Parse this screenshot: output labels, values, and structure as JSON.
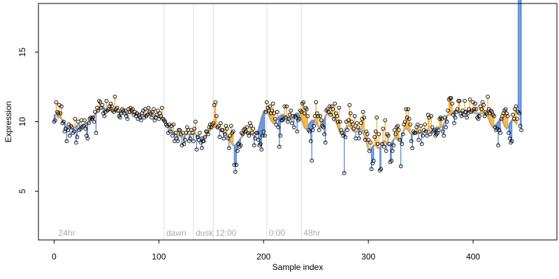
{
  "chart_data": {
    "type": "line",
    "xlabel": "Sample index",
    "ylabel": "Expression",
    "xlim": [
      -15,
      480
    ],
    "ylim": [
      1.5,
      18.5
    ],
    "xticks": [
      0,
      100,
      200,
      300,
      400
    ],
    "yticks": [
      5,
      10,
      15
    ],
    "colors": {
      "baseline": "#aaaaaa",
      "above": "#f5a623",
      "below": "#4a7fd6"
    },
    "markers": [
      {
        "x": 2,
        "label": "24hr",
        "line": false
      },
      {
        "x": 105,
        "label": "dawn",
        "line": true
      },
      {
        "x": 133,
        "label": "dusk",
        "line": true
      },
      {
        "x": 152,
        "label": "12:00",
        "line": true
      },
      {
        "x": 203,
        "label": "0:00",
        "line": true
      },
      {
        "x": 236,
        "label": "48hr",
        "line": true
      }
    ],
    "series": [
      {
        "values": [
          10.0,
          10.1,
          11.4,
          10.7,
          10.6,
          11.2,
          10.6,
          11.1,
          9.9,
          10.0,
          9.3,
          9.5,
          8.6,
          9.4,
          9.8,
          9.0,
          9.7,
          9.6,
          9.2,
          9.3,
          10.2,
          8.5,
          8.9,
          10.0,
          9.4,
          9.5,
          10.1,
          9.6,
          9.7,
          10.1,
          9.5,
          9.0,
          8.8,
          9.9,
          10.2,
          10.3,
          10.2,
          10.3,
          10.0,
          10.7,
          9.2,
          11.0,
          10.8,
          11.5,
          11.4,
          11.0,
          11.2,
          10.6,
          10.4,
          10.7,
          11.5,
          10.8,
          10.9,
          11.1,
          11.3,
          11.1,
          10.8,
          10.7,
          11.8,
          10.9,
          11.0,
          10.8,
          10.4,
          10.3,
          10.6,
          10.9,
          10.8,
          10.6,
          10.8,
          10.4,
          10.2,
          10.9,
          10.7,
          11.0,
          10.8,
          10.9,
          10.5,
          10.7,
          10.4,
          10.6,
          10.2,
          10.5,
          10.3,
          10.1,
          10.6,
          10.8,
          10.3,
          10.9,
          10.4,
          10.5,
          11.0,
          10.7,
          10.6,
          10.3,
          10.7,
          10.9,
          10.1,
          10.3,
          10.5,
          10.8,
          10.2,
          10.6,
          10.4,
          11.0,
          10.2,
          10.1,
          10.0,
          9.8,
          9.7,
          9.2,
          9.8,
          9.3,
          9.7,
          9.0,
          9.8,
          8.6,
          9.2,
          8.8,
          8.6,
          9.4,
          9.4,
          9.1,
          8.3,
          9.2,
          8.4,
          8.7,
          9.2,
          9.6,
          9.4,
          8.6,
          8.8,
          9.4,
          9.2,
          8.6,
          9.5,
          10.0,
          8.0,
          8.9,
          8.7,
          9.2,
          8.5,
          8.1,
          8.6,
          8.6,
          8.9,
          9.3,
          9.3,
          9.1,
          9.6,
          9.8,
          9.6,
          9.8,
          9.9,
          11.2,
          11.4,
          10.4,
          9.6,
          9.7,
          8.9,
          9.9,
          9.4,
          9.4,
          8.8,
          9.1,
          9.7,
          9.5,
          8.8,
          8.1,
          9.0,
          9.7,
          9.2,
          9.3,
          6.9,
          6.4,
          6.9,
          7.9,
          8.4,
          8.2,
          8.3,
          9.2,
          9.1,
          9.4,
          9.5,
          9.3,
          9.6,
          9.2,
          9.0,
          9.9,
          9.7,
          9.2,
          9.5,
          8.3,
          8.8,
          9.2,
          9.2,
          8.7,
          8.3,
          8.4,
          8.0,
          9.0,
          9.3,
          9.0,
          10.7,
          11.4,
          11.0,
          10.8,
          11.1,
          10.6,
          10.8,
          11.3,
          10.6,
          10.2,
          9.8,
          10.7,
          9.6,
          8.2,
          9.0,
          10.1,
          10.1,
          10.2,
          11.1,
          10.3,
          11.1,
          10.0,
          10.2,
          10.5,
          10.8,
          9.9,
          10.4,
          9.6,
          10.4,
          10.3,
          9.3,
          10.1,
          10.2,
          10.8,
          10.7,
          11.3,
          11.4,
          10.6,
          11.0,
          10.9,
          10.4,
          9.4,
          9.3,
          8.6,
          7.2,
          9.4,
          9.7,
          10.4,
          11.4,
          10.6,
          10.4,
          9.4,
          10.4,
          10.1,
          9.7,
          9.6,
          9.1,
          8.5,
          10.8,
          10.9,
          10.7,
          11.1,
          10.5,
          11.1,
          10.9,
          10.2,
          11.3,
          10.6,
          10.4,
          10.0,
          11.0,
          10.0,
          9.4,
          9.2,
          9.0,
          6.3,
          8.9,
          10.0,
          9.4,
          10.1,
          11.2,
          10.6,
          10.0,
          9.8,
          9.5,
          10.4,
          8.8,
          9.9,
          9.6,
          8.8,
          9.2,
          9.9,
          10.2,
          10.7,
          10.3,
          8.7,
          9.3,
          9.1,
          8.7,
          7.9,
          8.5,
          6.6,
          7.0,
          7.2,
          8.9,
          9.3,
          10.3,
          8.4,
          9.1,
          6.5,
          6.6,
          8.4,
          9.5,
          8.2,
          10.1,
          7.9,
          9.1,
          9.0,
          8.4,
          7.1,
          7.2,
          7.9,
          8.3,
          9.4,
          9.1,
          9.6,
          9.7,
          9.4,
          8.7,
          6.8,
          8.4,
          9.1,
          9.8,
          10.0,
          10.9,
          10.3,
          10.9,
          10.2,
          9.8,
          8.6,
          8.1,
          9.3,
          9.2,
          9.2,
          9.6,
          9.8,
          8.7,
          9.3,
          9.7,
          8.4,
          9.0,
          9.4,
          9.8,
          9.3,
          9.0,
          10.5,
          10.3,
          9.1,
          10.4,
          9.6,
          9.3,
          9.4,
          9.0,
          9.1,
          9.2,
          9.4,
          10.2,
          10.3,
          10.2,
          9.3,
          9.0,
          10.3,
          9.6,
          10.0,
          10.8,
          11.6,
          11.7,
          11.7,
          11.3,
          10.5,
          9.9,
          10.3,
          10.7,
          10.9,
          11.5,
          11.5,
          10.6,
          10.4,
          10.8,
          10.5,
          11.5,
          10.7,
          10.3,
          10.6,
          10.9,
          11.6,
          10.7,
          10.8,
          11.4,
          10.9,
          11.3,
          10.9,
          10.3,
          10.2,
          10.4,
          11.1,
          10.9,
          11.4,
          11.2,
          10.4,
          10.7,
          10.6,
          11.8,
          10.9,
          10.6,
          10.8,
          10.7,
          10.5,
          10.4,
          9.6,
          9.4,
          9.5,
          8.3,
          9.4,
          9.2,
          10.2,
          10.4,
          10.6,
          10.8,
          10.9,
          10.6,
          10.4,
          9.2,
          8.8,
          8.5,
          8.6,
          10.5,
          10.2,
          10.9,
          11.1,
          10.2,
          10.7,
          10.6,
          9.7,
          9.4
        ]
      }
    ],
    "baseline": [
      10.5,
      10.5,
      10.5,
      10.4,
      10.3,
      10.4,
      10.3,
      10.2,
      10.1,
      10.0,
      9.9,
      9.7,
      9.6,
      9.6,
      9.6,
      9.6,
      9.5,
      9.5,
      9.5,
      9.5,
      9.6,
      9.7,
      9.7,
      9.8,
      9.8,
      9.7,
      9.7,
      9.7,
      9.8,
      9.8,
      9.9,
      9.9,
      9.9,
      9.9,
      10.0,
      10.1,
      10.2,
      10.3,
      10.4,
      10.5,
      10.6,
      10.7,
      10.8,
      10.9,
      11.0,
      11.0,
      11.0,
      11.0,
      11.0,
      10.9,
      10.9,
      10.8,
      10.8,
      10.8,
      10.8,
      10.8,
      10.8,
      10.8,
      10.8,
      10.7,
      10.7,
      10.7,
      10.7,
      10.7,
      10.7,
      10.6,
      10.6,
      10.6,
      10.6,
      10.6,
      10.6,
      10.6,
      10.6,
      10.6,
      10.6,
      10.6,
      10.6,
      10.6,
      10.6,
      10.5,
      10.5,
      10.5,
      10.5,
      10.5,
      10.5,
      10.5,
      10.5,
      10.5,
      10.5,
      10.5,
      10.5,
      10.5,
      10.5,
      10.5,
      10.5,
      10.5,
      10.4,
      10.4,
      10.4,
      10.4,
      10.3,
      10.3,
      10.3,
      10.3,
      10.2,
      10.1,
      10.0,
      9.9,
      9.8,
      9.7,
      9.6,
      9.5,
      9.4,
      9.3,
      9.2,
      9.2,
      9.1,
      9.1,
      9.0,
      9.0,
      9.0,
      8.9,
      8.9,
      8.9,
      8.9,
      9.0,
      9.1,
      9.1,
      9.1,
      9.1,
      9.1,
      9.1,
      9.1,
      9.1,
      9.1,
      9.1,
      9.0,
      9.0,
      9.0,
      8.9,
      8.9,
      8.9,
      8.9,
      8.9,
      8.9,
      9.0,
      9.1,
      9.2,
      9.3,
      9.4,
      9.5,
      9.6,
      9.6,
      9.7,
      9.6,
      9.6,
      9.5,
      9.5,
      9.4,
      9.4,
      9.3,
      9.3,
      9.2,
      9.2,
      9.1,
      9.0,
      8.9,
      8.7,
      8.6,
      8.5,
      8.4,
      8.3,
      8.3,
      8.3,
      8.4,
      8.5,
      8.6,
      8.7,
      8.8,
      8.9,
      9.0,
      9.1,
      9.2,
      9.2,
      9.2,
      9.2,
      9.2,
      9.2,
      9.1,
      9.1,
      9.0,
      9.0,
      9.0,
      9.1,
      9.2,
      9.4,
      9.7,
      10.0,
      10.3,
      10.5,
      10.7,
      10.8,
      10.8,
      10.7,
      10.6,
      10.5,
      10.3,
      10.1,
      10.0,
      9.9,
      9.9,
      10.0,
      10.1,
      10.2,
      10.3,
      10.4,
      10.4,
      10.5,
      10.5,
      10.5,
      10.4,
      10.4,
      10.3,
      10.3,
      10.2,
      10.2,
      10.2,
      10.2,
      10.3,
      10.4,
      10.5,
      10.6,
      10.6,
      10.6,
      10.5,
      10.4,
      10.2,
      10.0,
      9.8,
      9.6,
      9.5,
      9.5,
      9.6,
      9.8,
      9.9,
      10.0,
      10.1,
      10.1,
      10.1,
      10.0,
      9.9,
      9.8,
      9.7,
      9.6,
      9.6,
      9.7,
      9.9,
      10.1,
      10.2,
      10.4,
      10.5,
      10.5,
      10.6,
      10.6,
      10.6,
      10.5,
      10.4,
      10.3,
      10.2,
      10.0,
      9.8,
      9.6,
      9.4,
      9.2,
      9.1,
      9.1,
      9.2,
      9.3,
      9.5,
      9.6,
      9.7,
      9.7,
      9.7,
      9.6,
      9.5,
      9.4,
      9.3,
      9.3,
      9.3,
      9.3,
      9.4,
      9.5,
      9.5,
      9.5,
      9.4,
      9.2,
      9.0,
      8.8,
      8.6,
      8.3,
      8.1,
      8.0,
      8.0,
      8.1,
      8.2,
      8.3,
      8.3,
      8.3,
      8.2,
      8.1,
      8.1,
      8.1,
      8.2,
      8.4,
      8.5,
      8.6,
      8.6,
      8.5,
      8.4,
      8.3,
      8.3,
      8.3,
      8.4,
      8.6,
      8.7,
      8.8,
      8.8,
      8.8,
      8.7,
      8.7,
      8.7,
      8.8,
      9.0,
      9.2,
      9.4,
      9.5,
      9.5,
      9.5,
      9.4,
      9.3,
      9.2,
      9.1,
      9.1,
      9.1,
      9.1,
      9.2,
      9.2,
      9.2,
      9.2,
      9.2,
      9.2,
      9.2,
      9.2,
      9.3,
      9.3,
      9.3,
      9.4,
      9.4,
      9.4,
      9.3,
      9.3,
      9.3,
      9.3,
      9.4,
      9.5,
      9.6,
      9.6,
      9.6,
      9.6,
      9.6,
      9.6,
      9.7,
      9.8,
      10.0,
      10.2,
      10.4,
      10.5,
      10.5,
      10.5,
      10.5,
      10.6,
      10.7,
      10.8,
      10.8,
      10.8,
      10.7,
      10.7,
      10.7,
      10.7,
      10.7,
      10.7,
      10.7,
      10.8,
      10.8,
      10.8,
      10.8,
      10.8,
      10.8,
      10.7,
      10.7,
      10.7,
      10.6,
      10.6,
      10.6,
      10.6,
      10.6,
      10.6,
      10.6,
      10.6,
      10.6,
      10.6,
      10.6,
      10.5,
      10.5,
      10.4,
      10.2,
      10.0,
      9.8,
      9.7,
      9.6,
      9.6,
      9.7,
      9.8,
      9.9,
      10.0,
      10.1,
      10.2,
      10.2,
      10.1,
      9.9,
      9.7,
      9.6,
      9.5,
      9.6,
      9.7,
      9.9,
      10.0,
      10.1,
      10.1,
      10.1,
      10.0,
      9.9,
      9.8
    ]
  }
}
